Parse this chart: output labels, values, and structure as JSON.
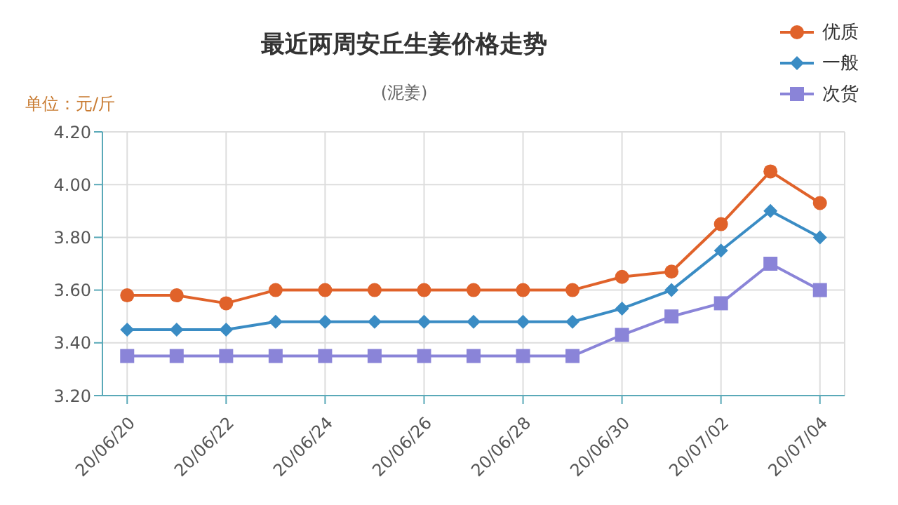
{
  "chart_data": {
    "type": "line",
    "title": "最近两周安丘生姜价格走势",
    "subtitle": "(泥姜)",
    "ylabel": "单位：元/斤",
    "categories": [
      "20/06/20",
      null,
      "20/06/22",
      null,
      "20/06/24",
      null,
      "20/06/26",
      null,
      "20/06/28",
      null,
      "20/06/30",
      null,
      "20/07/02",
      null,
      "20/07/04"
    ],
    "series": [
      {
        "name": "优质",
        "color": "#e0622a",
        "marker": "circle",
        "values": [
          3.58,
          3.58,
          3.55,
          3.6,
          3.6,
          3.6,
          3.6,
          3.6,
          3.6,
          3.6,
          3.65,
          3.67,
          3.85,
          4.05,
          3.93
        ]
      },
      {
        "name": "一般",
        "color": "#3a8cc4",
        "marker": "diamond",
        "values": [
          3.45,
          3.45,
          3.45,
          3.48,
          3.48,
          3.48,
          3.48,
          3.48,
          3.48,
          3.48,
          3.53,
          3.6,
          3.75,
          3.9,
          3.8
        ]
      },
      {
        "name": "次货",
        "color": "#8a84d8",
        "marker": "square",
        "values": [
          3.35,
          3.35,
          3.35,
          3.35,
          3.35,
          3.35,
          3.35,
          3.35,
          3.35,
          3.35,
          3.43,
          3.5,
          3.55,
          3.7,
          3.6
        ]
      }
    ],
    "ylim": [
      3.2,
      4.2
    ],
    "yticks": [
      {
        "value": 3.2,
        "label": "3.20"
      },
      {
        "value": 3.4,
        "label": "3.40"
      },
      {
        "value": 3.6,
        "label": "3.60"
      },
      {
        "value": 3.8,
        "label": "3.80"
      },
      {
        "value": 4.0,
        "label": "4.00"
      },
      {
        "value": 4.2,
        "label": "4.20"
      }
    ],
    "grid": true,
    "legend": "top right"
  }
}
